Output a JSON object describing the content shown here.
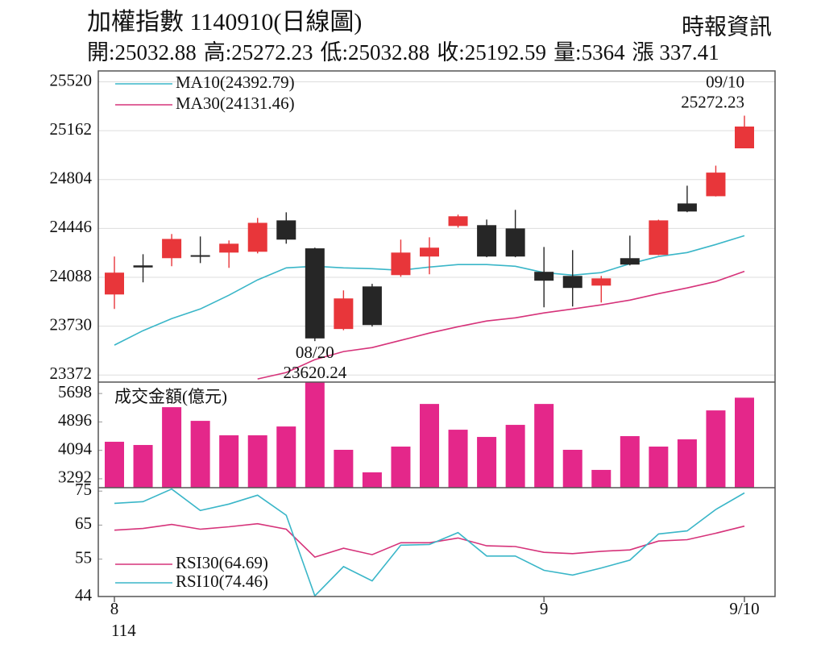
{
  "header": {
    "title": "加權指數 1140910(日線圖)",
    "source": "時報資訊",
    "quote": [
      "開:25032.88",
      "高:25272.23",
      "低:25032.88",
      "收:25192.59",
      "量:5364",
      "漲 337.41"
    ]
  },
  "chart_data": [
    {
      "type": "candlestick",
      "open": [
        23962,
        24175,
        24228,
        24250,
        24269,
        24275,
        24505,
        24300,
        23709,
        24021,
        24104,
        24240,
        24464,
        24470,
        24446,
        24128,
        24098,
        24027,
        24228,
        24252,
        24629,
        24682,
        25032.88
      ],
      "close": [
        24122,
        24160,
        24369,
        24240,
        24334,
        24487,
        24364,
        23640,
        23933,
        23738,
        24269,
        24305,
        24535,
        24240,
        24240,
        24063,
        24010,
        24080,
        24181,
        24505,
        24570,
        24855,
        25192.59
      ],
      "high": [
        24240,
        24257,
        24405,
        24387,
        24358,
        24523,
        24564,
        24305,
        23992,
        24040,
        24364,
        24381,
        24547,
        24511,
        24582,
        24310,
        24287,
        24098,
        24393,
        24510,
        24759,
        24906,
        25272.23
      ],
      "low": [
        23856,
        24051,
        24169,
        24192,
        24157,
        24263,
        24334,
        23620.24,
        23700,
        23727,
        24092,
        24110,
        24452,
        24235,
        24235,
        23868,
        23874,
        23903,
        24175,
        24250,
        24565,
        24680,
        25032.88
      ],
      "up_color": "#e8363a",
      "down_color": "#262626",
      "series": [
        {
          "name": "MA10(24392.79)",
          "color": "#3ab6c8",
          "values": [
            23591,
            23697,
            23785,
            23856,
            23957,
            24069,
            24157,
            24169,
            24157,
            24151,
            24139,
            24163,
            24181,
            24181,
            24169,
            24122,
            24104,
            24122,
            24187,
            24240,
            24269,
            24328,
            24392.79
          ]
        },
        {
          "name": "MA30(24131.46)",
          "color": "#d6337a",
          "values": [
            null,
            null,
            null,
            null,
            null,
            23343,
            23390,
            23485,
            23544,
            23573,
            23626,
            23679,
            23726,
            23768,
            23791,
            23827,
            23856,
            23886,
            23921,
            23968,
            24010,
            24057,
            24131.46
          ]
        }
      ],
      "annotations": [
        {
          "label": "09/10",
          "value": 25272.23
        },
        {
          "label": "08/20",
          "value": 23620.24
        }
      ],
      "ylim": [
        23320,
        25600
      ],
      "yticks": [
        23372,
        23730,
        24088,
        24446,
        24804,
        25162,
        25520
      ],
      "grid": true
    },
    {
      "type": "bar",
      "name": "成交金額(億元)",
      "color": "#e4278a",
      "values": [
        4336,
        4245,
        5312,
        4926,
        4518,
        4518,
        4767,
        6010,
        4109,
        3473,
        4200,
        5403,
        4676,
        4472,
        4813,
        5403,
        4109,
        3542,
        4495,
        4200,
        4404,
        5221,
        5580
      ],
      "ylim": [
        3040,
        6020
      ],
      "yticks": [
        3292,
        4094,
        4896,
        5698
      ],
      "grid": false
    },
    {
      "type": "line",
      "categories": [
        "8",
        null,
        null,
        null,
        null,
        null,
        null,
        null,
        null,
        null,
        null,
        null,
        null,
        null,
        null,
        "9",
        null,
        null,
        null,
        null,
        null,
        null,
        "9/10"
      ],
      "year_label": "114",
      "series": [
        {
          "name": "RSI30(64.69)",
          "color": "#d6337a",
          "values": [
            63.5,
            64.0,
            65.2,
            63.8,
            64.5,
            65.4,
            63.8,
            55.6,
            58.2,
            56.3,
            59.8,
            59.8,
            61.2,
            58.9,
            58.7,
            57.0,
            56.6,
            57.3,
            57.7,
            60.3,
            60.7,
            62.6,
            64.69
          ]
        },
        {
          "name": "RSI10(74.46)",
          "color": "#3ab6c8",
          "values": [
            71.4,
            71.9,
            75.6,
            69.3,
            71.2,
            73.8,
            67.9,
            44.2,
            52.8,
            48.6,
            59.1,
            59.3,
            62.8,
            55.9,
            55.9,
            51.7,
            50.3,
            52.4,
            54.7,
            62.4,
            63.3,
            69.6,
            74.46
          ]
        }
      ],
      "ylim": [
        44,
        76
      ],
      "yticks": [
        44,
        55,
        65,
        75
      ],
      "grid": false
    }
  ]
}
